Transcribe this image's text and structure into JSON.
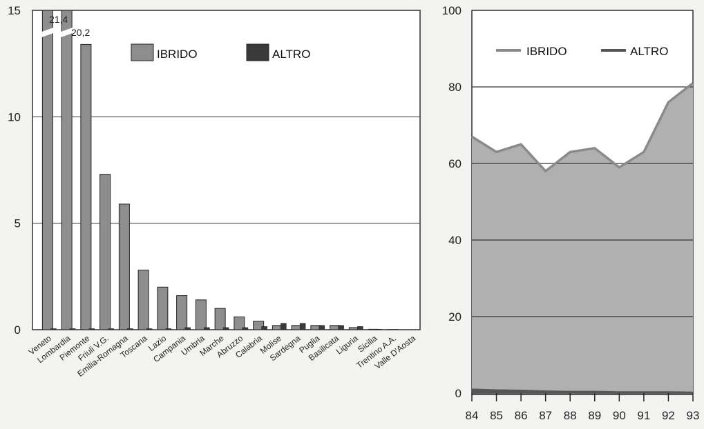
{
  "chart_data": [
    {
      "type": "bar",
      "categories": [
        "Veneto",
        "Lombardia",
        "Piemonte",
        "Friuli V.G.",
        "Emilia-Romagna",
        "Toscana",
        "Lazio",
        "Campania",
        "Umbria",
        "Marche",
        "Abruzzo",
        "Calabria",
        "Molise",
        "Sardegna",
        "Puglia",
        "Basilicata",
        "Liguria",
        "Sicilia",
        "Trentino A.A.",
        "Valle D'Aosta"
      ],
      "series": [
        {
          "name": "IBRIDO",
          "values": [
            21.4,
            20.2,
            13.4,
            7.3,
            5.9,
            2.8,
            2.0,
            1.6,
            1.4,
            1.0,
            0.6,
            0.4,
            0.2,
            0.2,
            0.2,
            0.2,
            0.1,
            0.02,
            0.01,
            0.0
          ]
        },
        {
          "name": "ALTRO",
          "values": [
            0.05,
            0.05,
            0.05,
            0.05,
            0.05,
            0.05,
            0.05,
            0.1,
            0.1,
            0.1,
            0.1,
            0.15,
            0.3,
            0.3,
            0.2,
            0.2,
            0.15,
            0.02,
            0.01,
            0.0
          ]
        }
      ],
      "data_labels": [
        "21,4",
        "20,2"
      ],
      "yticks": [
        0,
        5,
        10,
        15
      ],
      "ylim": [
        0,
        15
      ],
      "axis_break": true,
      "grid": "horizontal",
      "legend_position": "top-right",
      "colors": {
        "IBRIDO": "#8e8e8e",
        "ALTRO": "#3a3a3a"
      }
    },
    {
      "type": "area",
      "x": [
        "84",
        "85",
        "86",
        "87",
        "88",
        "89",
        "90",
        "91",
        "92",
        "93"
      ],
      "series": [
        {
          "name": "IBRIDO",
          "values": [
            67,
            63,
            65,
            58,
            63,
            64,
            59,
            63,
            76,
            81
          ]
        },
        {
          "name": "ALTRO",
          "values": [
            1.2,
            1.0,
            0.9,
            0.7,
            0.6,
            0.6,
            0.5,
            0.5,
            0.5,
            0.4
          ]
        }
      ],
      "yticks": [
        0,
        20,
        40,
        60,
        80,
        100
      ],
      "ylim": [
        0,
        100
      ],
      "grid": "horizontal",
      "legend_position": "top",
      "colors": {
        "IBRIDO": "#b0b0b0",
        "IBRIDO_line": "#8a8a8a",
        "ALTRO": "#555555"
      }
    }
  ]
}
